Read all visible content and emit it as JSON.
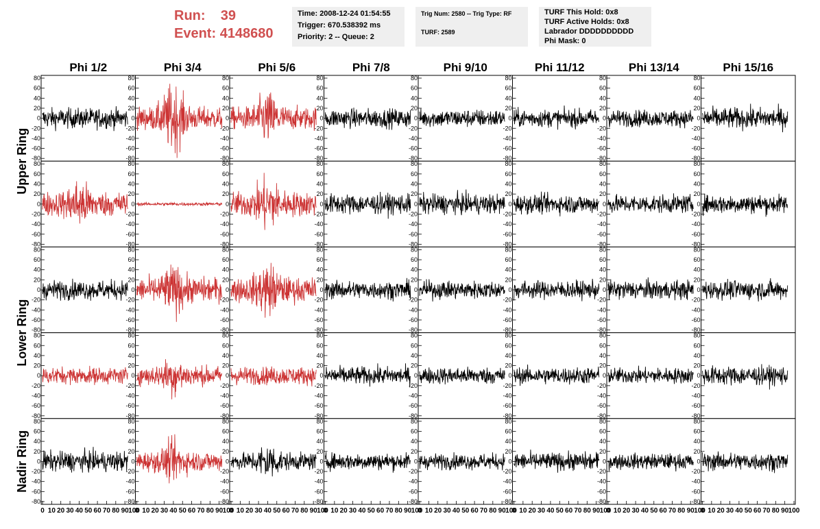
{
  "header": {
    "run_label": "Run:",
    "run_value": "39",
    "event_label": "Event:",
    "event_value": "4148680",
    "time": "Time: 2008-12-24 01:54:55",
    "trigger": "Trigger: 670.538392 ms",
    "priority": "Priority: 2 -- Queue: 2",
    "trig_num": "Trig Num: 2580 -- Trig Type: RF",
    "turf": "TURF: 2589",
    "turf_hold": "TURF This Hold: 0x8",
    "turf_active": "TURF Active Holds: 0x8",
    "labrador": "Labrador DDDDDDDDDD",
    "phi_mask": "Phi Mask: 0"
  },
  "colors": {
    "triggered": "#cc3333",
    "normal": "#000000",
    "accent_text": "#d05050",
    "info_bg": "#efefef"
  },
  "chart_data": {
    "type": "line",
    "columns": [
      "Phi 1/2",
      "Phi 3/4",
      "Phi 5/6",
      "Phi 7/8",
      "Phi 9/10",
      "Phi 11/12",
      "Phi 13/14",
      "Phi 15/16"
    ],
    "ring_labels": [
      "Upper Ring",
      "Lower Ring",
      "Nadir Ring"
    ],
    "rows": 5,
    "xlim": [
      0,
      100
    ],
    "ylim": [
      -80,
      80
    ],
    "yticks": [
      -80,
      -60,
      -40,
      -20,
      0,
      20,
      40,
      60,
      80
    ],
    "xticks": [
      0,
      10,
      20,
      30,
      40,
      50,
      60,
      70,
      80,
      90,
      100
    ],
    "highlighted_panels": [
      [
        0,
        1
      ],
      [
        0,
        2
      ],
      [
        1,
        0
      ],
      [
        1,
        1
      ],
      [
        1,
        2
      ],
      [
        2,
        1
      ],
      [
        2,
        2
      ],
      [
        3,
        0
      ],
      [
        3,
        1
      ],
      [
        3,
        2
      ],
      [
        4,
        1
      ]
    ],
    "panel_amplitudes": [
      [
        18,
        20,
        20,
        17,
        16,
        16,
        15,
        19
      ],
      [
        22,
        3,
        22,
        18,
        18,
        17,
        16,
        17
      ],
      [
        17,
        22,
        22,
        16,
        16,
        16,
        17,
        17
      ],
      [
        15,
        17,
        16,
        16,
        15,
        15,
        14,
        17
      ],
      [
        18,
        18,
        15,
        15,
        14,
        16,
        14,
        16
      ]
    ],
    "burst_amplitudes": [
      [
        0,
        45,
        30,
        0,
        0,
        0,
        0,
        0
      ],
      [
        25,
        0,
        30,
        0,
        0,
        0,
        0,
        0
      ],
      [
        0,
        25,
        30,
        0,
        0,
        0,
        0,
        0
      ],
      [
        0,
        20,
        0,
        0,
        0,
        0,
        0,
        0
      ],
      [
        0,
        20,
        20,
        0,
        0,
        0,
        0,
        0
      ]
    ]
  }
}
